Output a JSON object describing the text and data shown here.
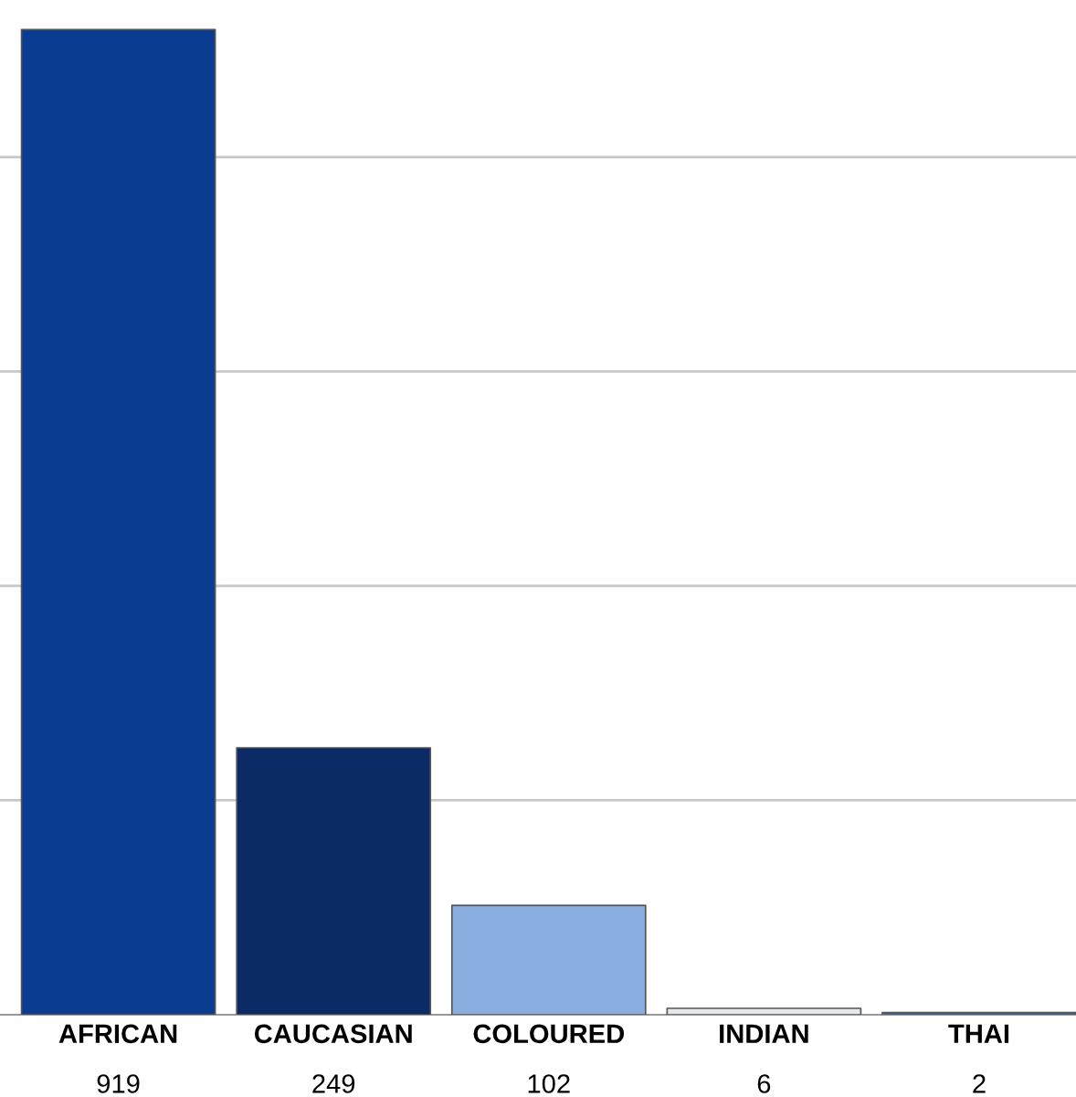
{
  "chart_data": {
    "type": "bar",
    "categories": [
      "AFRICAN",
      "CAUCASIAN",
      "COLOURED",
      "INDIAN",
      "THAI"
    ],
    "values": [
      919,
      249,
      102,
      6,
      2
    ],
    "colors": [
      "#0a3d91",
      "#0b2a66",
      "#8aaee0",
      "#e4e9ee",
      "#3a6cc4"
    ],
    "yticks": [
      {
        "value": 200,
        "label": null
      },
      {
        "value": 400,
        "label": null
      },
      {
        "value": 600,
        "label": null
      },
      {
        "value": 800,
        "label": null
      }
    ],
    "grid": "y",
    "tick_labels": "x",
    "data_labels": true
  }
}
